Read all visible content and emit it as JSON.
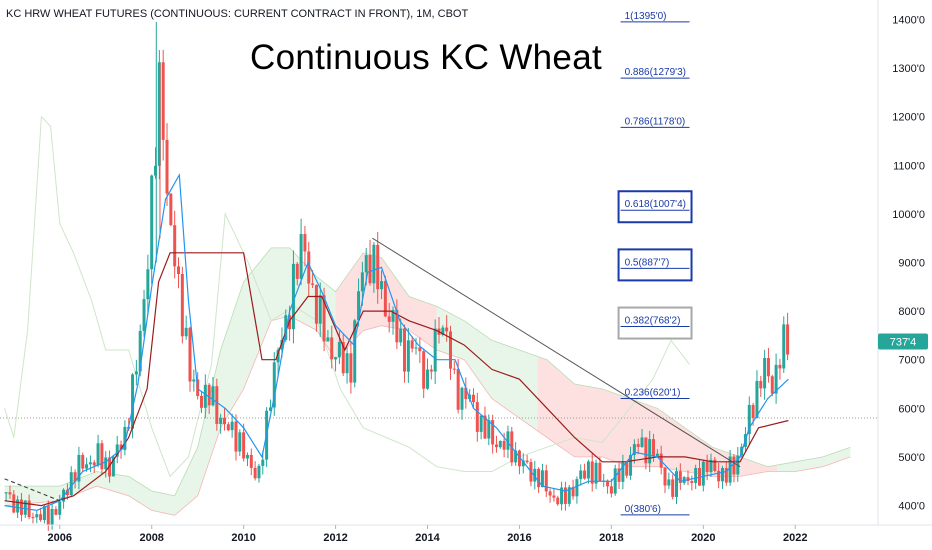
{
  "header": {
    "symbol_line": "KC HRW WHEAT FUTURES (CONTINUOUS: CURRENT CONTRACT IN FRONT), 1M, CBOT",
    "annotation_title": "Continuous KC Wheat"
  },
  "colors": {
    "up": "#26a69a",
    "down": "#ef5350",
    "conversion": "#2196f3",
    "base": "#9c1c1c",
    "cloud_bull": "#e8f5e9",
    "cloud_bear": "#fde0e0",
    "lagging": "#cfe6c9",
    "fib_text": "#1a3aa8",
    "price_badge": "#26a69a"
  },
  "chart_data": {
    "type": "candlestick",
    "interval": "1M",
    "xlim": [
      2004.7,
      2023.8
    ],
    "ylim": [
      360,
      1440
    ],
    "y_ticks": [
      {
        "value": 400,
        "label": "400'0"
      },
      {
        "value": 500,
        "label": "500'0"
      },
      {
        "value": 600,
        "label": "600'0"
      },
      {
        "value": 700,
        "label": "700'0"
      },
      {
        "value": 800,
        "label": "800'0"
      },
      {
        "value": 900,
        "label": "900'0"
      },
      {
        "value": 1000,
        "label": "1000'0"
      },
      {
        "value": 1100,
        "label": "1100'0"
      },
      {
        "value": 1200,
        "label": "1200'0"
      },
      {
        "value": 1300,
        "label": "1300'0"
      },
      {
        "value": 1400,
        "label": "1400'0"
      }
    ],
    "x_ticks": [
      {
        "value": 2006,
        "label": "2006"
      },
      {
        "value": 2008,
        "label": "2008"
      },
      {
        "value": 2010,
        "label": "2010"
      },
      {
        "value": 2012,
        "label": "2012"
      },
      {
        "value": 2014,
        "label": "2014"
      },
      {
        "value": 2016,
        "label": "2016"
      },
      {
        "value": 2018,
        "label": "2018"
      },
      {
        "value": 2020,
        "label": "2020"
      },
      {
        "value": 2022,
        "label": "2022"
      }
    ],
    "last_price": {
      "value": 737.5,
      "label": "737'4"
    },
    "reference_line": 580,
    "price_path": [
      [
        2004.75,
        425
      ],
      [
        2005.3,
        385
      ],
      [
        2005.7,
        375
      ],
      [
        2006.0,
        400
      ],
      [
        2006.3,
        470
      ],
      [
        2006.8,
        500
      ],
      [
        2007.1,
        480
      ],
      [
        2007.4,
        540
      ],
      [
        2007.7,
        700
      ],
      [
        2007.9,
        900
      ],
      [
        2008.1,
        1150
      ],
      [
        2008.2,
        1320
      ],
      [
        2008.35,
        1000
      ],
      [
        2008.5,
        900
      ],
      [
        2008.7,
        780
      ],
      [
        2008.85,
        650
      ],
      [
        2009.0,
        630
      ],
      [
        2009.3,
        620
      ],
      [
        2009.6,
        560
      ],
      [
        2009.9,
        540
      ],
      [
        2010.1,
        480
      ],
      [
        2010.35,
        470
      ],
      [
        2010.5,
        560
      ],
      [
        2010.7,
        720
      ],
      [
        2010.95,
        760
      ],
      [
        2011.1,
        890
      ],
      [
        2011.3,
        930
      ],
      [
        2011.6,
        800
      ],
      [
        2011.9,
        720
      ],
      [
        2012.1,
        700
      ],
      [
        2012.35,
        690
      ],
      [
        2012.55,
        880
      ],
      [
        2012.7,
        915
      ],
      [
        2012.9,
        870
      ],
      [
        2013.2,
        780
      ],
      [
        2013.5,
        720
      ],
      [
        2013.8,
        720
      ],
      [
        2014.0,
        650
      ],
      [
        2014.3,
        800
      ],
      [
        2014.6,
        640
      ],
      [
        2014.9,
        620
      ],
      [
        2015.2,
        560
      ],
      [
        2015.5,
        530
      ],
      [
        2015.8,
        520
      ],
      [
        2016.1,
        480
      ],
      [
        2016.4,
        460
      ],
      [
        2016.7,
        420
      ],
      [
        2016.9,
        410
      ],
      [
        2017.2,
        440
      ],
      [
        2017.5,
        480
      ],
      [
        2017.8,
        450
      ],
      [
        2018.0,
        440
      ],
      [
        2018.3,
        480
      ],
      [
        2018.6,
        530
      ],
      [
        2018.9,
        510
      ],
      [
        2019.1,
        480
      ],
      [
        2019.3,
        420
      ],
      [
        2019.5,
        470
      ],
      [
        2019.7,
        440
      ],
      [
        2019.9,
        470
      ],
      [
        2020.1,
        480
      ],
      [
        2020.3,
        470
      ],
      [
        2020.5,
        460
      ],
      [
        2020.7,
        490
      ],
      [
        2020.9,
        540
      ],
      [
        2021.1,
        620
      ],
      [
        2021.3,
        680
      ],
      [
        2021.5,
        650
      ],
      [
        2021.7,
        720
      ],
      [
        2021.85,
        737
      ]
    ],
    "conversion_line": [
      [
        2004.8,
        400
      ],
      [
        2005.5,
        390
      ],
      [
        2006.0,
        410
      ],
      [
        2006.5,
        470
      ],
      [
        2007.0,
        490
      ],
      [
        2007.4,
        520
      ],
      [
        2007.7,
        650
      ],
      [
        2008.0,
        850
      ],
      [
        2008.3,
        1030
      ],
      [
        2008.6,
        1080
      ],
      [
        2008.8,
        820
      ],
      [
        2009.0,
        640
      ],
      [
        2009.6,
        600
      ],
      [
        2010.0,
        560
      ],
      [
        2010.4,
        500
      ],
      [
        2010.7,
        640
      ],
      [
        2011.0,
        800
      ],
      [
        2011.4,
        900
      ],
      [
        2011.7,
        840
      ],
      [
        2012.0,
        770
      ],
      [
        2012.4,
        730
      ],
      [
        2012.7,
        880
      ],
      [
        2013.0,
        890
      ],
      [
        2013.4,
        780
      ],
      [
        2013.8,
        730
      ],
      [
        2014.2,
        700
      ],
      [
        2014.6,
        700
      ],
      [
        2015.0,
        600
      ],
      [
        2015.5,
        560
      ],
      [
        2016.0,
        500
      ],
      [
        2016.5,
        440
      ],
      [
        2017.0,
        430
      ],
      [
        2017.5,
        450
      ],
      [
        2018.0,
        450
      ],
      [
        2018.5,
        510
      ],
      [
        2019.0,
        500
      ],
      [
        2019.5,
        450
      ],
      [
        2020.0,
        460
      ],
      [
        2020.5,
        470
      ],
      [
        2020.8,
        500
      ],
      [
        2021.0,
        560
      ],
      [
        2021.4,
        620
      ],
      [
        2021.85,
        660
      ]
    ],
    "base_line": [
      [
        2004.8,
        410
      ],
      [
        2005.6,
        400
      ],
      [
        2006.3,
        420
      ],
      [
        2007.0,
        470
      ],
      [
        2007.5,
        540
      ],
      [
        2007.9,
        640
      ],
      [
        2008.15,
        860
      ],
      [
        2008.4,
        920
      ],
      [
        2009.0,
        920
      ],
      [
        2009.7,
        920
      ],
      [
        2010.0,
        920
      ],
      [
        2010.4,
        700
      ],
      [
        2010.7,
        700
      ],
      [
        2011.0,
        780
      ],
      [
        2011.4,
        830
      ],
      [
        2011.7,
        830
      ],
      [
        2012.2,
        720
      ],
      [
        2012.6,
        800
      ],
      [
        2013.2,
        800
      ],
      [
        2013.6,
        780
      ],
      [
        2014.2,
        760
      ],
      [
        2014.8,
        730
      ],
      [
        2015.4,
        680
      ],
      [
        2016.0,
        660
      ],
      [
        2016.6,
        600
      ],
      [
        2017.2,
        540
      ],
      [
        2017.8,
        490
      ],
      [
        2018.3,
        490
      ],
      [
        2019.0,
        500
      ],
      [
        2019.6,
        500
      ],
      [
        2020.2,
        490
      ],
      [
        2020.8,
        490
      ],
      [
        2021.2,
        560
      ],
      [
        2021.85,
        575
      ]
    ],
    "lagging_span": [
      [
        2004.8,
        600
      ],
      [
        2005.0,
        540
      ],
      [
        2005.3,
        760
      ],
      [
        2005.6,
        1200
      ],
      [
        2005.8,
        1180
      ],
      [
        2006.0,
        980
      ],
      [
        2006.3,
        920
      ],
      [
        2006.7,
        820
      ],
      [
        2007.0,
        720
      ],
      [
        2007.5,
        720
      ],
      [
        2008.0,
        560
      ],
      [
        2008.4,
        460
      ],
      [
        2008.8,
        500
      ],
      [
        2009.3,
        690
      ],
      [
        2009.6,
        1000
      ],
      [
        2010.1,
        900
      ],
      [
        2010.6,
        780
      ],
      [
        2011.1,
        810
      ],
      [
        2011.6,
        780
      ],
      [
        2012.1,
        640
      ],
      [
        2012.6,
        560
      ],
      [
        2013.1,
        540
      ],
      [
        2013.6,
        520
      ],
      [
        2014.2,
        480
      ],
      [
        2014.8,
        470
      ],
      [
        2015.4,
        470
      ],
      [
        2016.0,
        500
      ],
      [
        2016.6,
        520
      ],
      [
        2017.2,
        540
      ],
      [
        2017.8,
        530
      ],
      [
        2018.4,
        600
      ],
      [
        2018.9,
        660
      ],
      [
        2019.3,
        740
      ],
      [
        2019.7,
        690
      ]
    ],
    "cloud_top": [
      [
        2004.8,
        440
      ],
      [
        2006.0,
        440
      ],
      [
        2006.8,
        470
      ],
      [
        2007.5,
        460
      ],
      [
        2008.0,
        430
      ],
      [
        2008.5,
        420
      ],
      [
        2009.0,
        520
      ],
      [
        2009.5,
        720
      ],
      [
        2010.0,
        860
      ],
      [
        2010.6,
        930
      ],
      [
        2011.0,
        930
      ],
      [
        2011.6,
        870
      ],
      [
        2012.0,
        840
      ],
      [
        2012.6,
        920
      ],
      [
        2013.0,
        910
      ],
      [
        2013.6,
        830
      ],
      [
        2014.2,
        810
      ],
      [
        2014.8,
        780
      ],
      [
        2015.4,
        740
      ],
      [
        2016.0,
        720
      ],
      [
        2016.6,
        700
      ],
      [
        2017.2,
        650
      ],
      [
        2017.8,
        640
      ],
      [
        2018.4,
        620
      ],
      [
        2019.0,
        600
      ],
      [
        2019.6,
        560
      ],
      [
        2020.2,
        520
      ],
      [
        2020.8,
        500
      ],
      [
        2021.4,
        480
      ],
      [
        2022.0,
        490
      ],
      [
        2022.6,
        500
      ],
      [
        2023.2,
        520
      ]
    ],
    "cloud_bottom": [
      [
        2004.8,
        400
      ],
      [
        2006.0,
        410
      ],
      [
        2006.8,
        440
      ],
      [
        2007.5,
        420
      ],
      [
        2008.0,
        390
      ],
      [
        2008.5,
        380
      ],
      [
        2009.0,
        420
      ],
      [
        2009.5,
        560
      ],
      [
        2010.0,
        640
      ],
      [
        2010.6,
        780
      ],
      [
        2011.0,
        790
      ],
      [
        2011.6,
        760
      ],
      [
        2012.0,
        700
      ],
      [
        2012.6,
        760
      ],
      [
        2013.0,
        770
      ],
      [
        2013.6,
        760
      ],
      [
        2014.2,
        720
      ],
      [
        2014.8,
        700
      ],
      [
        2015.4,
        620
      ],
      [
        2016.0,
        580
      ],
      [
        2016.6,
        540
      ],
      [
        2017.2,
        500
      ],
      [
        2017.8,
        500
      ],
      [
        2018.4,
        480
      ],
      [
        2019.0,
        480
      ],
      [
        2019.6,
        470
      ],
      [
        2020.2,
        460
      ],
      [
        2020.8,
        460
      ],
      [
        2021.4,
        470
      ],
      [
        2022.0,
        470
      ],
      [
        2022.6,
        480
      ],
      [
        2023.2,
        500
      ]
    ],
    "cloud_bear_ranges": [
      [
        2012.0,
        2014.2
      ],
      [
        2016.4,
        2021.6
      ]
    ],
    "trendline": {
      "from": [
        2012.8,
        950
      ],
      "to": [
        2020.8,
        480
      ]
    },
    "dashed_trendline": {
      "from": [
        2004.8,
        455
      ],
      "to": [
        2006.0,
        410
      ]
    },
    "fib_levels": [
      {
        "label": "1(1395'0)",
        "value": 1395.0,
        "boxed": false,
        "box_color": ""
      },
      {
        "label": "0.886(1279'3)",
        "value": 1279.375,
        "boxed": false,
        "box_color": ""
      },
      {
        "label": "0.786(1178'0)",
        "value": 1178.0,
        "boxed": false,
        "box_color": ""
      },
      {
        "label": "0.618(1007'4)",
        "value": 1007.5,
        "boxed": true,
        "box_color": "#1a3aa8"
      },
      {
        "label": "0.5(887'7)",
        "value": 887.875,
        "boxed": true,
        "box_color": "#1a3aa8"
      },
      {
        "label": "0.382(768'2)",
        "value": 768.25,
        "boxed": true,
        "box_color": "#a8a8a8"
      },
      {
        "label": "0.236(620'1)",
        "value": 620.125,
        "boxed": false,
        "box_color": ""
      },
      {
        "label": "0(380'6)",
        "value": 380.75,
        "boxed": false,
        "box_color": ""
      }
    ],
    "fib_x_range": [
      2018.2,
      2019.7
    ]
  }
}
